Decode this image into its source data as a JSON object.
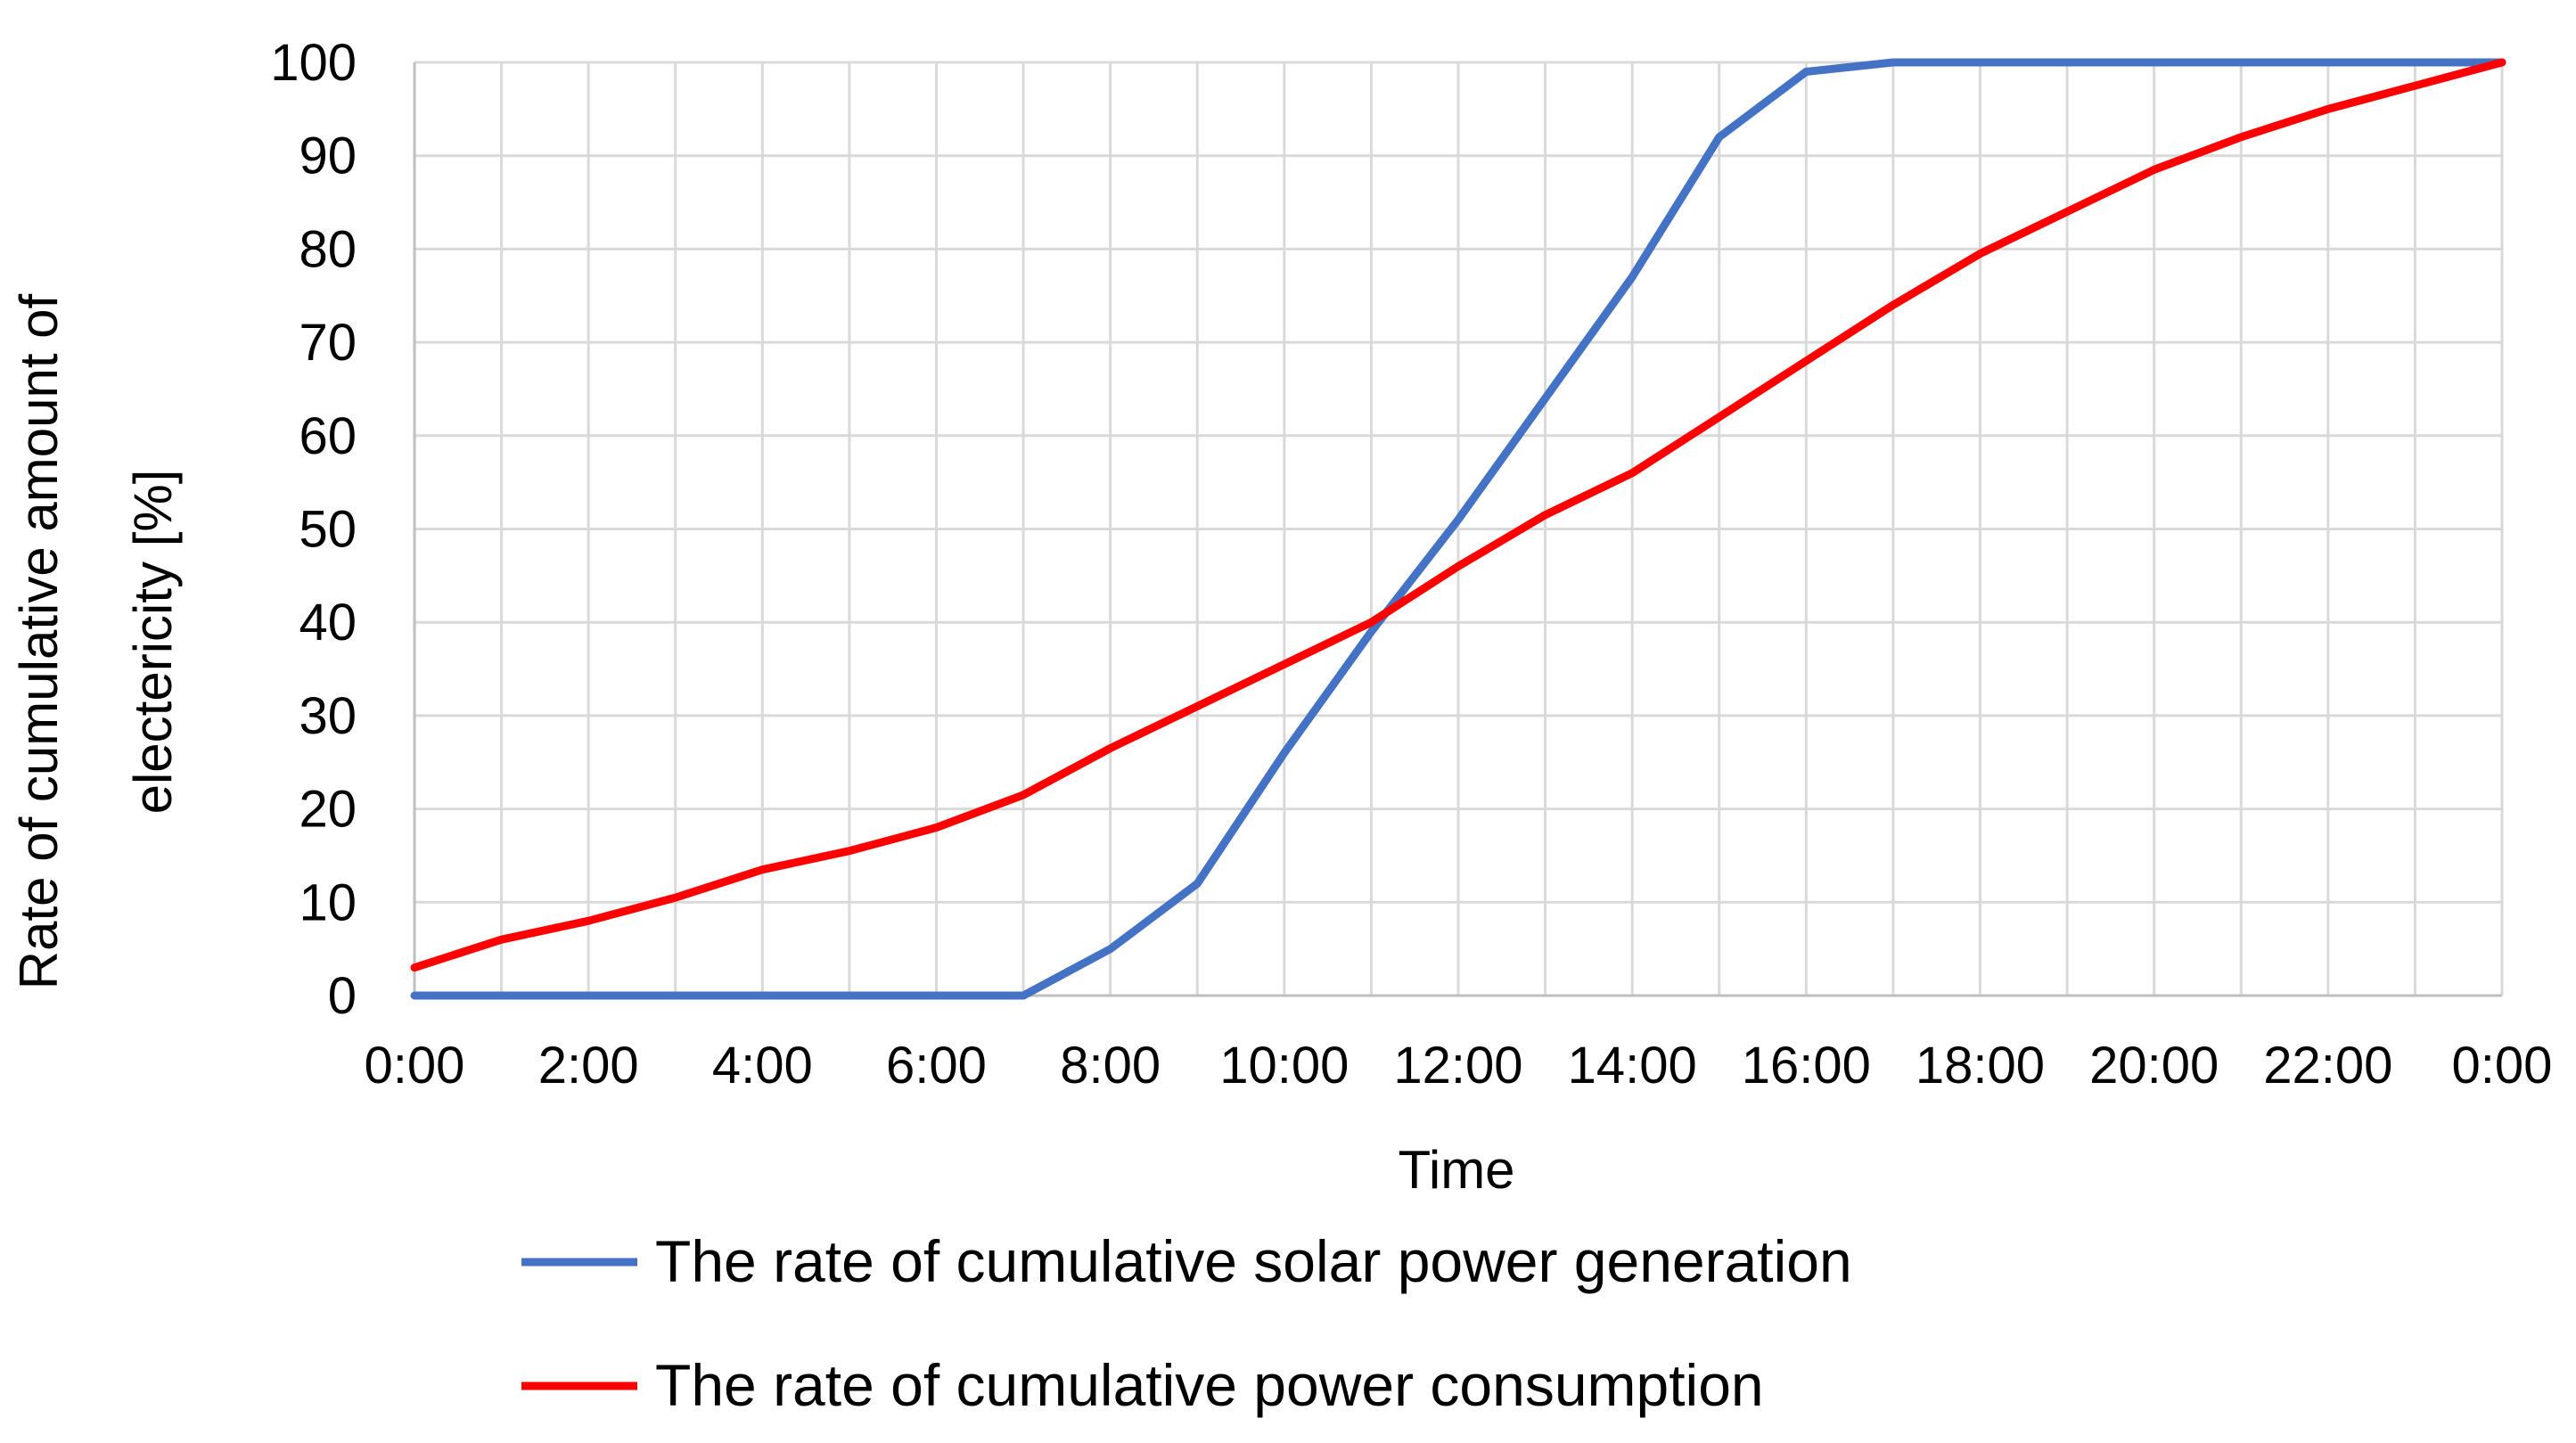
{
  "chart_data": {
    "type": "line",
    "title": "",
    "xlabel": "Time",
    "ylabel_lines": [
      "Rate of cumulative amount of",
      "electericity [%]"
    ],
    "ylim": [
      0,
      100
    ],
    "yticks": [
      "0",
      "10",
      "20",
      "30",
      "40",
      "50",
      "60",
      "70",
      "80",
      "90",
      "100"
    ],
    "ytick_values": [
      0,
      10,
      20,
      30,
      40,
      50,
      60,
      70,
      80,
      90,
      100
    ],
    "x": [
      0,
      1,
      2,
      3,
      4,
      5,
      6,
      7,
      8,
      9,
      10,
      11,
      12,
      13,
      14,
      15,
      16,
      17,
      18,
      19,
      20,
      21,
      22,
      23,
      24
    ],
    "xlim": [
      0,
      24
    ],
    "xtick_hours": [
      0,
      2,
      4,
      6,
      8,
      10,
      12,
      14,
      16,
      18,
      20,
      22,
      24
    ],
    "xtick_labels": [
      "0:00",
      "2:00",
      "4:00",
      "6:00",
      "8:00",
      "10:00",
      "12:00",
      "14:00",
      "16:00",
      "18:00",
      "20:00",
      "22:00",
      "0:00"
    ],
    "grid": true,
    "legend_position": "bottom",
    "series": [
      {
        "name": "The rate of cumulative solar power generation",
        "color": "#4472c4",
        "values": [
          0,
          0,
          0,
          0,
          0,
          0,
          0,
          0,
          5,
          12,
          26,
          39,
          51,
          64,
          77,
          92,
          99,
          100,
          100,
          100,
          100,
          100,
          100,
          100,
          100
        ]
      },
      {
        "name": "The rate of cumulative power consumption",
        "color": "#ff0000",
        "values": [
          3,
          6,
          8,
          10.5,
          13.5,
          15.5,
          18,
          21.5,
          26.5,
          31,
          35.5,
          40,
          46,
          51.5,
          56,
          62,
          68,
          74,
          79.5,
          84,
          88.5,
          92,
          95,
          97.5,
          100
        ]
      }
    ]
  }
}
